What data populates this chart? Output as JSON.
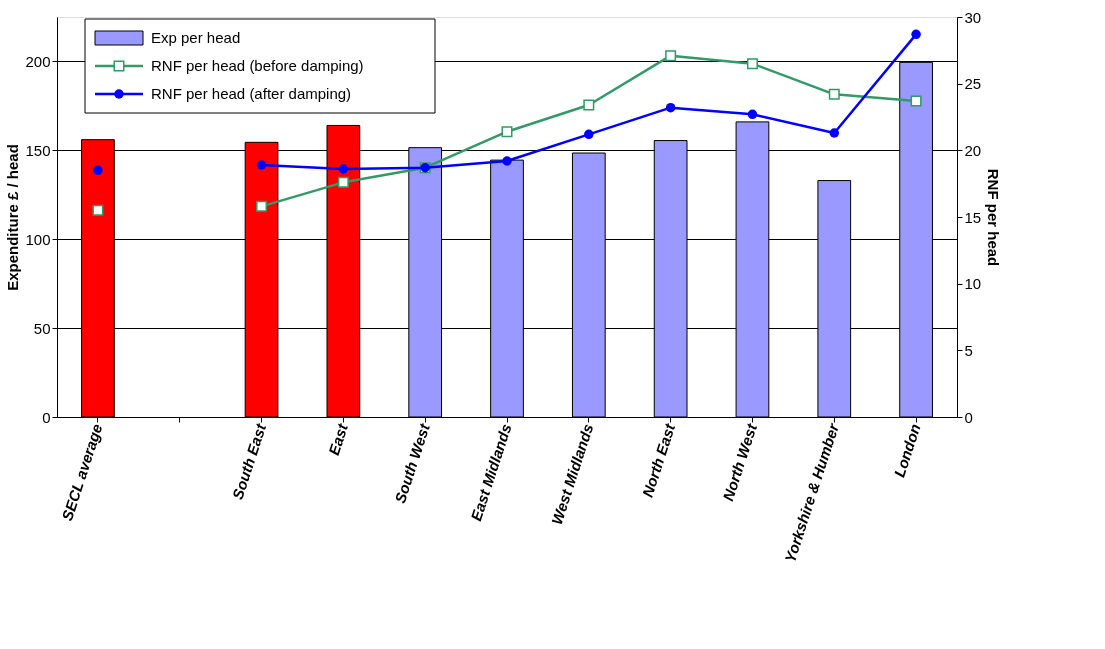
{
  "chart_data": {
    "type": "bar",
    "categories": [
      "SECL average",
      null,
      "South East",
      "East",
      "South West",
      "East Midlands",
      "West Midlands",
      "North East",
      "North West",
      "Yorkshire & Humber",
      "London"
    ],
    "ylabel": "Expenditure £ / head",
    "y2label": "RNF per head",
    "ylim": [
      0,
      225
    ],
    "yticks": [
      0,
      50,
      100,
      150,
      200
    ],
    "y2lim": [
      0,
      30
    ],
    "y2ticks": [
      0,
      5,
      10,
      15,
      20,
      25,
      30
    ],
    "grid": "y",
    "legend": "top left",
    "series": [
      {
        "name": "Exp per head",
        "color": "#9999ff",
        "colors": [
          "#ff0000",
          null,
          "#ff0000",
          "#ff0000",
          "#9999ff",
          "#9999ff",
          "#9999ff",
          "#9999ff",
          "#9999ff",
          "#9999ff",
          "#9999ff"
        ],
        "values": [
          156,
          null,
          154.5,
          164,
          151.5,
          144.5,
          148.5,
          155.5,
          166,
          133,
          199.5
        ]
      },
      {
        "name": "RNF per head (before damping)",
        "type": "line",
        "axis": "y2",
        "color": "#339966",
        "marker": "square",
        "values": [
          15.5,
          null,
          15.8,
          17.6,
          18.7,
          21.4,
          23.4,
          27.1,
          26.5,
          24.2,
          23.7
        ]
      },
      {
        "name": "RNF per head (after damping)",
        "type": "line",
        "axis": "y2",
        "color": "#0000ff",
        "marker": "circle",
        "values": [
          18.5,
          null,
          18.9,
          18.6,
          18.7,
          19.2,
          21.2,
          23.2,
          22.7,
          21.3,
          28.7
        ]
      }
    ]
  }
}
